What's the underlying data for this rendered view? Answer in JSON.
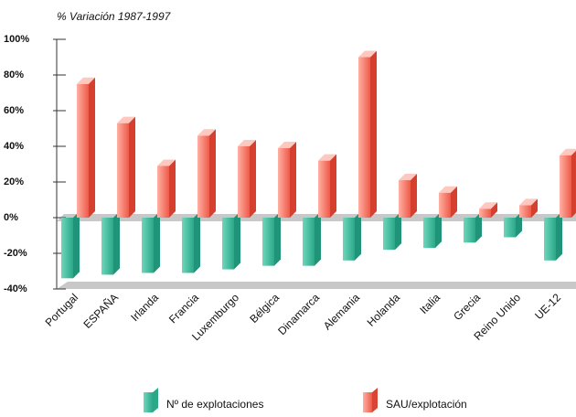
{
  "chart_data": {
    "type": "bar3d",
    "title": "% Variación 1987-1997",
    "categories": [
      "Portugal",
      "ESPAÑA",
      "Irlanda",
      "Francia",
      "Luxemburgo",
      "Bélgica",
      "Dinamarca",
      "Alemania",
      "Holanda",
      "Italia",
      "Grecia",
      "Reino Unido",
      "UE-12"
    ],
    "series": [
      {
        "name": "Nº de explotaciones",
        "color": "#3cbfa0",
        "values": [
          -34,
          -32,
          -31,
          -31,
          -29,
          -27,
          -27,
          -24,
          -18,
          -17,
          -14,
          -11,
          -24
        ]
      },
      {
        "name": "SAU/explotación",
        "color": "#f26b5b",
        "values": [
          75,
          53,
          29,
          46,
          40,
          39,
          32,
          90,
          21,
          14,
          5,
          7,
          35
        ]
      }
    ],
    "ylim": [
      -40,
      100
    ],
    "yticks": [
      {
        "value": -40,
        "label": "-40%"
      },
      {
        "value": -20,
        "label": "-20%"
      },
      {
        "value": 0,
        "label": "0%"
      },
      {
        "value": 20,
        "label": "20%"
      },
      {
        "value": 40,
        "label": "40%"
      },
      {
        "value": 60,
        "label": "60%"
      },
      {
        "value": 80,
        "label": "80%"
      },
      {
        "value": 100,
        "label": "100%"
      }
    ]
  }
}
